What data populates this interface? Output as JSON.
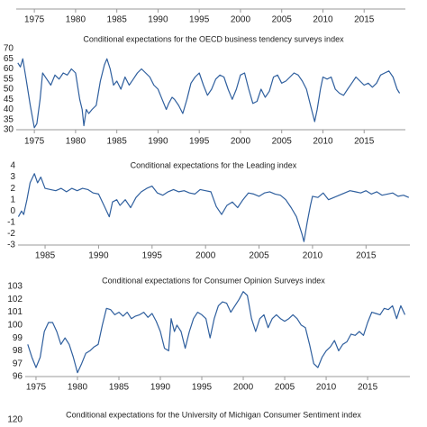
{
  "chart_data": [
    {
      "type": "line",
      "xlim": [
        1972.8,
        2020
      ],
      "xticks": [
        1975,
        1980,
        1985,
        1990,
        1995,
        2000,
        2005,
        2010,
        2015
      ]
    },
    {
      "type": "line",
      "title": "Conditional expectations for the OECD business tendency surveys index",
      "color": "#2f5f9e",
      "xlim": [
        1972.8,
        2020
      ],
      "xticks": [
        1975,
        1980,
        1985,
        1990,
        1995,
        2000,
        2005,
        2010,
        2015
      ],
      "ylim": [
        30,
        70
      ],
      "yticks": [
        30,
        35,
        40,
        45,
        50,
        55,
        60,
        65,
        70
      ],
      "x": [
        1973.0,
        1973.3,
        1973.6,
        1974.0,
        1974.5,
        1975.0,
        1975.3,
        1975.7,
        1976.0,
        1976.5,
        1977.0,
        1977.5,
        1978.0,
        1978.5,
        1979.0,
        1979.5,
        1980.0,
        1980.5,
        1980.8,
        1981.0,
        1981.3,
        1981.6,
        1982.0,
        1982.5,
        1983.0,
        1983.5,
        1983.8,
        1984.2,
        1984.6,
        1985.0,
        1985.5,
        1986.0,
        1986.5,
        1987.0,
        1987.5,
        1988.0,
        1988.5,
        1989.0,
        1989.5,
        1990.0,
        1990.5,
        1991.0,
        1991.3,
        1991.7,
        1992.0,
        1992.5,
        1993.0,
        1993.5,
        1994.0,
        1994.5,
        1995.0,
        1995.5,
        1996.0,
        1996.5,
        1997.0,
        1997.5,
        1998.0,
        1998.5,
        1999.0,
        1999.5,
        2000.0,
        2000.5,
        2001.0,
        2001.5,
        2002.0,
        2002.5,
        2003.0,
        2003.5,
        2004.0,
        2004.5,
        2005.0,
        2005.5,
        2006.0,
        2006.5,
        2007.0,
        2007.5,
        2008.0,
        2008.5,
        2009.0,
        2009.3,
        2009.7,
        2010.0,
        2010.5,
        2011.0,
        2011.5,
        2012.0,
        2012.5,
        2013.0,
        2013.5,
        2014.0,
        2014.5,
        2015.0,
        2015.5,
        2016.0,
        2016.5,
        2017.0,
        2017.5,
        2018.0,
        2018.5,
        2019.0,
        2019.3
      ],
      "values": [
        63,
        61,
        65,
        55,
        42,
        31,
        33,
        45,
        58,
        55,
        52,
        57,
        55,
        58,
        57,
        60,
        58,
        45,
        40,
        32,
        40,
        38,
        40,
        42,
        54,
        62,
        65,
        60,
        52,
        54,
        50,
        56,
        52,
        55,
        58,
        60,
        58,
        56,
        52,
        50,
        45,
        40,
        43,
        46,
        45,
        42,
        38,
        45,
        53,
        56,
        58,
        52,
        47,
        50,
        55,
        57,
        56,
        50,
        45,
        50,
        57,
        58,
        50,
        43,
        44,
        50,
        46,
        49,
        56,
        57,
        53,
        54,
        56,
        58,
        57,
        54,
        50,
        42,
        34,
        40,
        50,
        56,
        55,
        56,
        50,
        48,
        47,
        50,
        53,
        56,
        54,
        52,
        53,
        51,
        53,
        57,
        58,
        59,
        56,
        50,
        48
      ]
    },
    {
      "type": "line",
      "title": "Conditional expectations for the Leading index",
      "color": "#2f5f9e",
      "xlim": [
        1982.47,
        2019.1
      ],
      "xticks": [
        1985,
        1990,
        1995,
        2000,
        2005,
        2010,
        2015
      ],
      "ylim": [
        -3,
        4
      ],
      "yticks": [
        -3,
        -2,
        -1,
        0,
        1,
        2,
        3,
        4
      ],
      "x": [
        1982.5,
        1982.8,
        1983.0,
        1983.3,
        1983.6,
        1984.0,
        1984.3,
        1984.6,
        1985.0,
        1985.5,
        1986.0,
        1986.5,
        1987.0,
        1987.5,
        1988.0,
        1988.5,
        1989.0,
        1989.5,
        1990.0,
        1990.5,
        1991.0,
        1991.3,
        1991.7,
        1992.0,
        1992.5,
        1993.0,
        1993.5,
        1994.0,
        1994.5,
        1995.0,
        1995.5,
        1996.0,
        1996.5,
        1997.0,
        1997.5,
        1998.0,
        1998.5,
        1999.0,
        1999.5,
        2000.0,
        2000.5,
        2001.0,
        2001.5,
        2002.0,
        2002.5,
        2003.0,
        2003.5,
        2004.0,
        2004.5,
        2005.0,
        2005.5,
        2006.0,
        2006.5,
        2007.0,
        2007.5,
        2008.0,
        2008.5,
        2009.0,
        2009.2,
        2009.5,
        2009.8,
        2010.0,
        2010.5,
        2011.0,
        2011.5,
        2012.0,
        2012.5,
        2013.0,
        2013.5,
        2014.0,
        2014.5,
        2015.0,
        2015.5,
        2016.0,
        2016.5,
        2017.0,
        2017.5,
        2018.0,
        2018.5,
        2019.0
      ],
      "values": [
        -0.5,
        0,
        -0.3,
        1,
        2.5,
        3.3,
        2.5,
        3,
        2,
        1.9,
        1.8,
        2,
        1.7,
        2,
        1.8,
        2,
        1.9,
        1.6,
        1.5,
        0.5,
        -0.5,
        0.8,
        1.0,
        0.5,
        1.0,
        0.3,
        1.2,
        1.7,
        2.0,
        2.2,
        1.6,
        1.4,
        1.7,
        1.9,
        1.7,
        1.8,
        1.6,
        1.5,
        1.9,
        1.8,
        1.7,
        0.4,
        -0.3,
        0.5,
        0.8,
        0.3,
        1.0,
        1.6,
        1.5,
        1.3,
        1.6,
        1.7,
        1.5,
        1.4,
        1.0,
        0.3,
        -0.5,
        -2.0,
        -2.7,
        -1,
        0.5,
        1.3,
        1.2,
        1.6,
        1.0,
        1.2,
        1.4,
        1.6,
        1.8,
        1.7,
        1.6,
        1.8,
        1.5,
        1.7,
        1.4,
        1.5,
        1.6,
        1.3,
        1.4,
        1.2
      ]
    },
    {
      "type": "line",
      "title": "Conditional expectations for Consumer Opinion Surveys index",
      "color": "#2f5f9e",
      "xlim": [
        1973.7,
        2020.1
      ],
      "xticks": [
        1975,
        1980,
        1985,
        1990,
        1995,
        2000,
        2005,
        2010,
        2015
      ],
      "ylim": [
        96,
        103
      ],
      "yticks": [
        96,
        97,
        98,
        99,
        100,
        101,
        102,
        103
      ],
      "x": [
        1974.0,
        1974.5,
        1975.0,
        1975.5,
        1976.0,
        1976.5,
        1977.0,
        1977.5,
        1978.0,
        1978.5,
        1979.0,
        1979.5,
        1980.0,
        1980.5,
        1981.0,
        1981.5,
        1982.0,
        1982.5,
        1983.0,
        1983.5,
        1984.0,
        1984.5,
        1985.0,
        1985.5,
        1986.0,
        1986.5,
        1987.0,
        1987.5,
        1988.0,
        1988.5,
        1989.0,
        1989.5,
        1990.0,
        1990.5,
        1991.0,
        1991.3,
        1991.7,
        1992.0,
        1992.5,
        1993.0,
        1993.5,
        1994.0,
        1994.5,
        1995.0,
        1995.5,
        1996.0,
        1996.5,
        1997.0,
        1997.5,
        1998.0,
        1998.5,
        1999.0,
        1999.5,
        2000.0,
        2000.5,
        2001.0,
        2001.5,
        2002.0,
        2002.5,
        2003.0,
        2003.5,
        2004.0,
        2004.5,
        2005.0,
        2005.5,
        2006.0,
        2006.5,
        2007.0,
        2007.5,
        2008.0,
        2008.5,
        2009.0,
        2009.5,
        2010.0,
        2010.5,
        2011.0,
        2011.5,
        2012.0,
        2012.5,
        2013.0,
        2013.5,
        2014.0,
        2014.5,
        2015.0,
        2015.5,
        2016.0,
        2016.5,
        2017.0,
        2017.5,
        2018.0,
        2018.5,
        2019.0,
        2019.5
      ],
      "values": [
        98.5,
        97.5,
        96.7,
        97.5,
        99.5,
        100.2,
        100.2,
        99.5,
        98.5,
        99,
        98.5,
        97.5,
        96.3,
        97,
        97.8,
        98,
        98.3,
        98.5,
        100,
        101.3,
        101.2,
        100.8,
        101,
        100.7,
        101,
        100.5,
        100.7,
        100.8,
        101,
        100.6,
        100.9,
        100.3,
        99.5,
        98.2,
        98,
        100.5,
        99.5,
        100,
        99.5,
        98.2,
        99.5,
        100.5,
        101,
        100.8,
        100.5,
        99,
        100.5,
        101.5,
        101.8,
        101.7,
        101,
        101.5,
        102,
        102.6,
        102.3,
        100.5,
        99.5,
        100.5,
        100.8,
        99.8,
        100.5,
        100.8,
        100.5,
        100.3,
        100.5,
        100.8,
        100.5,
        100,
        99.8,
        98.5,
        97,
        96.7,
        97.5,
        98,
        98.3,
        98.8,
        98,
        98.5,
        98.7,
        99.3,
        99.2,
        99.5,
        99.2,
        100.2,
        101,
        100.9,
        100.8,
        101.3,
        101.2,
        101.5,
        100.5,
        101.5,
        100.8
      ]
    },
    {
      "type": "line",
      "title": "Conditional expectations for the University of Michigan Consumer Sentiment index",
      "yticks": [
        120
      ]
    }
  ]
}
